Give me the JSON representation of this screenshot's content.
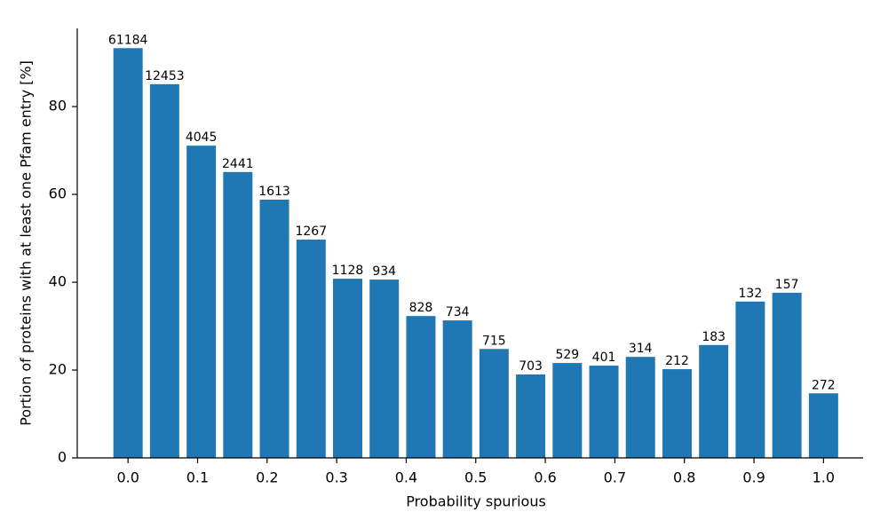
{
  "chart_data": {
    "type": "bar",
    "xlabel": "Probability spurious",
    "ylabel": "Portion of proteins with at least one Pfam entry [%]",
    "x": [
      0,
      0.0526,
      0.1053,
      0.1579,
      0.2105,
      0.2632,
      0.3158,
      0.3684,
      0.4211,
      0.4737,
      0.5263,
      0.5789,
      0.6316,
      0.6842,
      0.7368,
      0.7895,
      0.8421,
      0.8947,
      0.9474,
      1.0
    ],
    "values": [
      93.3,
      85.1,
      71.1,
      65.1,
      58.8,
      49.7,
      40.8,
      40.6,
      32.3,
      31.3,
      24.8,
      19.0,
      21.6,
      21.0,
      23.0,
      20.2,
      25.7,
      35.6,
      37.6,
      14.7
    ],
    "bar_labels": [
      "61184",
      "12453",
      "4045",
      "2441",
      "1613",
      "1267",
      "1128",
      "934",
      "828",
      "734",
      "715",
      "703",
      "529",
      "401",
      "314",
      "212",
      "183",
      "132",
      "157",
      "272"
    ],
    "color": "#1f77b4",
    "xlim": [
      -0.073,
      1.057
    ],
    "ylim": [
      0,
      97.8
    ],
    "xticks": [
      {
        "value": 0,
        "label": "0.0"
      },
      0.1,
      0.2,
      0.3,
      0.4,
      0.5,
      0.6,
      0.7,
      0.8,
      0.9,
      {
        "value": 1,
        "label": "1.0"
      }
    ],
    "yticks": [
      0,
      20,
      40,
      60,
      80
    ]
  }
}
